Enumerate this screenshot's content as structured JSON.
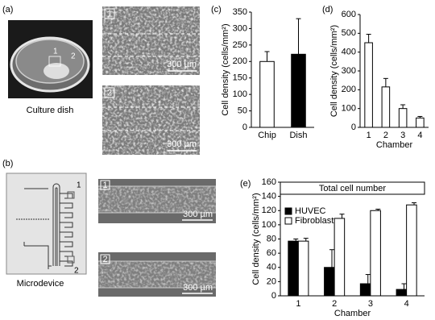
{
  "figure": {
    "panels": [
      "(a)",
      "(b)",
      "(c)",
      "(d)",
      "(e)"
    ],
    "culture_dish": {
      "caption": "Culture dish",
      "labels": [
        "1",
        "2"
      ]
    },
    "dish_images": [
      {
        "label": "1",
        "scale": "300 µm"
      },
      {
        "label": "2",
        "scale": "300 µm"
      }
    ],
    "microdevice": {
      "caption": "Microdevice",
      "labels": [
        "1",
        "2"
      ]
    },
    "device_images": [
      {
        "label": "1",
        "scale": "300 µm"
      },
      {
        "label": "2",
        "scale": "300 µm"
      }
    ]
  },
  "chart_data": [
    {
      "type": "bar",
      "ylabel": "Cell density (cells/mm²)",
      "categories": [
        "Chip",
        "Dish"
      ],
      "values": [
        200,
        222
      ],
      "errors": [
        30,
        108
      ],
      "colors": [
        "#ffffff",
        "#000000"
      ],
      "ylim": [
        0,
        350
      ],
      "yticks": [
        0,
        50,
        100,
        150,
        200,
        250,
        300,
        350
      ]
    },
    {
      "type": "bar",
      "ylabel": "Cell density (cells/mm²)",
      "xlabel": "Chamber",
      "categories": [
        "1",
        "2",
        "3",
        "4"
      ],
      "values": [
        450,
        215,
        100,
        50
      ],
      "errors": [
        45,
        45,
        20,
        8
      ],
      "color": "#ffffff",
      "ylim": [
        0,
        600
      ],
      "yticks": [
        0,
        100,
        200,
        300,
        400,
        500,
        600
      ]
    },
    {
      "type": "bar",
      "ylabel": "Cell density (cells/mm²)",
      "xlabel": "Chamber",
      "categories": [
        "1",
        "2",
        "3",
        "4"
      ],
      "annotation": "Total cell number",
      "legend": "upper left",
      "series": [
        {
          "name": "HUVEC",
          "color": "#000000",
          "values": [
            77,
            40,
            17,
            9
          ],
          "errors": [
            3,
            25,
            13,
            8
          ]
        },
        {
          "name": "Fibroblast",
          "color": "#ffffff",
          "values": [
            77,
            109,
            120,
            128
          ],
          "errors": [
            4,
            6,
            2,
            3
          ]
        }
      ],
      "ylim": [
        0,
        160
      ],
      "yticks": [
        0,
        20,
        40,
        60,
        80,
        100,
        120,
        140,
        160
      ]
    }
  ]
}
